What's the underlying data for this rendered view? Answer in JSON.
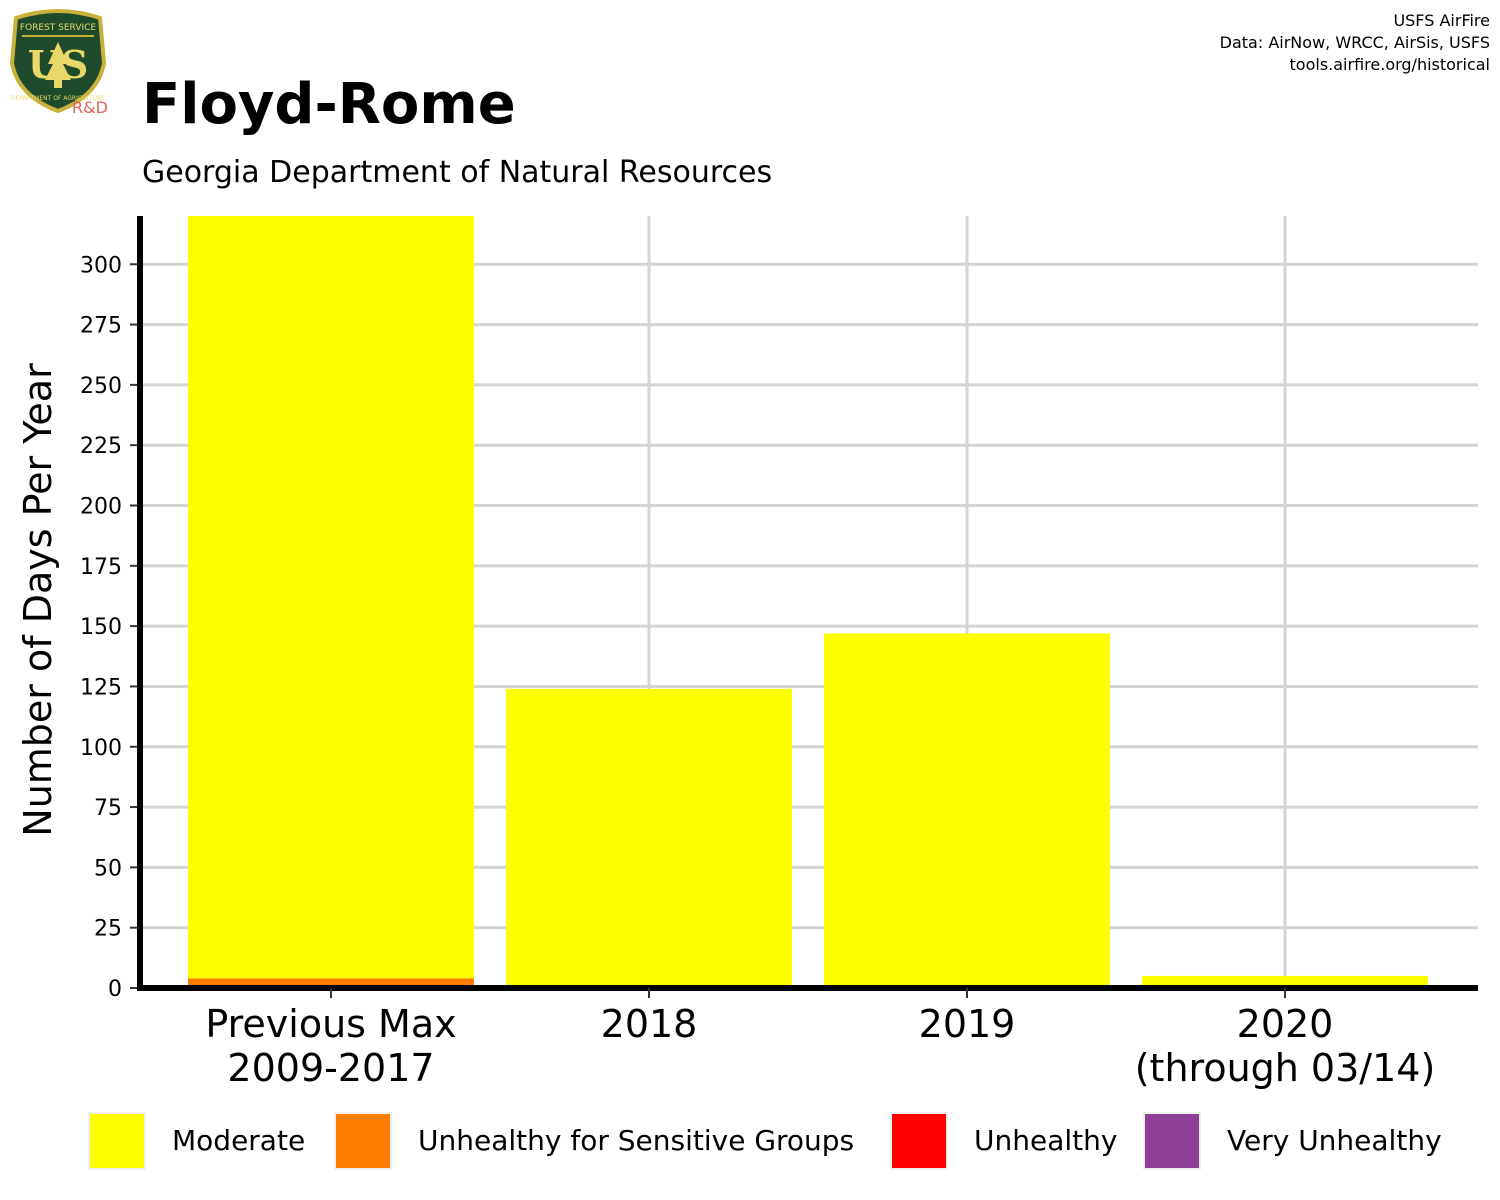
{
  "header": {
    "title": "Floyd-Rome",
    "subtitle": "Georgia Department of Natural Resources",
    "credit_line1": "USFS AirFire",
    "credit_line2": "Data: AirNow, WRCC, AirSis, USFS",
    "credit_line3": "tools.airfire.org/historical",
    "logo_text_top": "FOREST SERVICE",
    "logo_text_bottom": "DEPARTMENT OF AGRICULTURE",
    "logo_letters": "US",
    "logo_rd": "R&D"
  },
  "chart_data": {
    "type": "bar",
    "stacked": true,
    "categories": [
      {
        "line1": "Previous Max",
        "line2": "2009-2017"
      },
      {
        "line1": "2018",
        "line2": ""
      },
      {
        "line1": "2019",
        "line2": ""
      },
      {
        "line1": "2020",
        "line2": "(through 03/14)"
      }
    ],
    "series": [
      {
        "name": "Unhealthy for Sensitive Groups",
        "color": "#FF7E00",
        "values": [
          4,
          0,
          0,
          0
        ]
      },
      {
        "name": "Moderate",
        "color": "#FFFF00",
        "values": [
          316,
          124,
          147,
          5
        ]
      }
    ],
    "ylabel": "Number of Days Per Year",
    "ylim": [
      0,
      320
    ],
    "yticks": [
      0,
      25,
      50,
      75,
      100,
      125,
      150,
      175,
      200,
      225,
      250,
      275,
      300
    ],
    "grid": true,
    "legend": {
      "placement": "bottom",
      "items": [
        {
          "label": "Moderate",
          "color": "#FFFF00"
        },
        {
          "label": "Unhealthy for Sensitive Groups",
          "color": "#FF7E00"
        },
        {
          "label": "Unhealthy",
          "color": "#FF0000"
        },
        {
          "label": "Very Unhealthy",
          "color": "#8F3F97"
        }
      ]
    }
  }
}
